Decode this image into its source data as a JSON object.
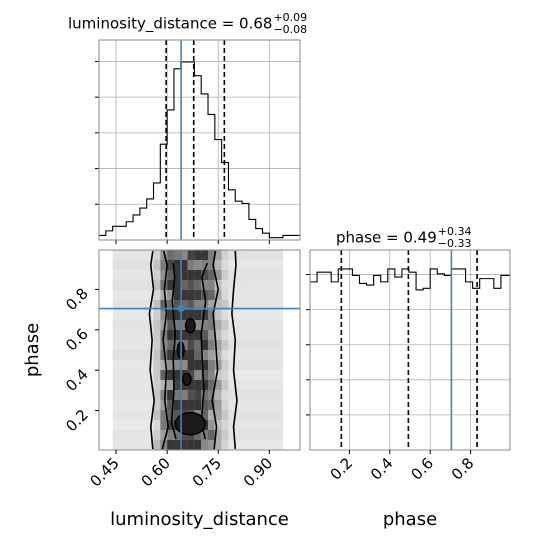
{
  "chart_data": {
    "type": "corner",
    "parameters": [
      "luminosity_distance",
      "phase"
    ],
    "axis_labels": {
      "x": [
        "luminosity_distance",
        "phase"
      ],
      "y": [
        "phase"
      ]
    },
    "ranges": {
      "luminosity_distance": [
        0.4,
        0.99
      ],
      "phase": [
        0.005,
        0.995
      ]
    },
    "truths": {
      "luminosity_distance": 0.641,
      "phase": 0.705
    },
    "titles": [
      {
        "param": "luminosity_distance",
        "text": "luminosity_distance = 0.68",
        "plus": "+0.09",
        "minus": "−0.08"
      },
      {
        "param": "phase",
        "text": "phase = 0.49",
        "plus": "+0.34",
        "minus": "−0.33"
      }
    ],
    "quantiles": {
      "luminosity_distance": [
        0.597,
        0.678,
        0.768
      ],
      "phase": [
        0.16,
        0.492,
        0.832
      ]
    },
    "ticks": {
      "luminosity_distance": [
        "0.45",
        "0.60",
        "0.75",
        "0.90"
      ],
      "luminosity_distance_values": [
        0.45,
        0.6,
        0.75,
        0.9
      ],
      "phase_x": [
        "0.2",
        "0.4",
        "0.6",
        "0.8"
      ],
      "phase_y": [
        "0.2",
        "0.4",
        "0.6",
        "0.8"
      ],
      "phase_values": [
        0.2,
        0.4,
        0.6,
        0.8
      ]
    },
    "hist_luminosity_distance": {
      "edges": [
        0.4,
        0.42,
        0.44,
        0.46,
        0.48,
        0.5,
        0.52,
        0.54,
        0.56,
        0.58,
        0.6,
        0.62,
        0.64,
        0.66,
        0.68,
        0.7,
        0.72,
        0.74,
        0.76,
        0.78,
        0.8,
        0.82,
        0.84,
        0.86,
        0.88,
        0.9,
        0.92,
        0.94,
        0.96,
        0.99
      ],
      "counts": [
        2,
        4,
        6,
        6,
        8,
        11,
        14,
        18,
        25,
        42,
        57,
        75,
        78,
        78,
        72,
        64,
        55,
        44,
        34,
        22,
        17,
        16,
        9,
        5,
        3,
        1,
        1,
        2,
        2
      ]
    },
    "hist_phase": {
      "edges": [
        0.005,
        0.04,
        0.075,
        0.11,
        0.145,
        0.18,
        0.215,
        0.25,
        0.285,
        0.32,
        0.355,
        0.39,
        0.425,
        0.46,
        0.495,
        0.53,
        0.565,
        0.6,
        0.635,
        0.67,
        0.705,
        0.74,
        0.775,
        0.81,
        0.845,
        0.88,
        0.915,
        0.95,
        0.995
      ],
      "counts": [
        1.04,
        1.1,
        1.1,
        1.04,
        1.12,
        1.12,
        1.08,
        1.03,
        1.02,
        1.08,
        1.04,
        1.12,
        1.07,
        1.12,
        1.1,
        0.99,
        1.0,
        1.12,
        1.09,
        1.08,
        1.12,
        1.12,
        1.04,
        1.0,
        1.06,
        1.06,
        1.0,
        1.08
      ]
    },
    "hist2d_colx_edges": [
      0.44,
      0.56,
      0.58,
      0.6,
      0.62,
      0.64,
      0.66,
      0.68,
      0.7,
      0.72,
      0.74,
      0.76,
      0.78,
      0.94
    ],
    "hist2d_colx_weight": [
      0.05,
      0.2,
      0.55,
      0.8,
      1.0,
      0.95,
      1.0,
      0.95,
      0.8,
      0.6,
      0.35,
      0.15,
      0.05
    ],
    "contours": [
      {
        "x": [
          0.626,
          0.613,
          0.62,
          0.618,
          0.624,
          0.615,
          0.622,
          0.618
        ],
        "y": [
          0.06,
          0.14,
          0.3,
          0.45,
          0.58,
          0.74,
          0.86,
          0.93
        ]
      },
      {
        "x": [
          0.712,
          0.7,
          0.708,
          0.703,
          0.7,
          0.713,
          0.702,
          0.718
        ],
        "y": [
          0.06,
          0.14,
          0.3,
          0.45,
          0.58,
          0.74,
          0.86,
          0.93
        ]
      },
      {
        "x": [
          0.586,
          0.603,
          0.593,
          0.598,
          0.588,
          0.598,
          0.592,
          0.6,
          0.59
        ],
        "y": [
          0.01,
          0.12,
          0.25,
          0.4,
          0.55,
          0.68,
          0.8,
          0.92,
          0.99
        ]
      },
      {
        "x": [
          0.738,
          0.745,
          0.732,
          0.748,
          0.742,
          0.735,
          0.75,
          0.735,
          0.742
        ],
        "y": [
          0.01,
          0.12,
          0.25,
          0.4,
          0.55,
          0.68,
          0.8,
          0.92,
          0.99
        ]
      },
      {
        "x": [
          0.558,
          0.552,
          0.562,
          0.55,
          0.556,
          0.548,
          0.56,
          0.552,
          0.558
        ],
        "y": [
          0.01,
          0.12,
          0.25,
          0.4,
          0.55,
          0.68,
          0.8,
          0.92,
          0.99
        ]
      },
      {
        "x": [
          0.8,
          0.795,
          0.805,
          0.795,
          0.8,
          0.79,
          0.795,
          0.802,
          0.8
        ],
        "y": [
          0.01,
          0.12,
          0.25,
          0.4,
          0.55,
          0.68,
          0.8,
          0.92,
          0.99
        ]
      }
    ],
    "blobs": [
      {
        "x": 0.668,
        "y": 0.135,
        "rx": 0.044,
        "ry": 0.055
      },
      {
        "x": 0.658,
        "y": 0.355,
        "rx": 0.012,
        "ry": 0.03
      },
      {
        "x": 0.64,
        "y": 0.5,
        "rx": 0.01,
        "ry": 0.04
      },
      {
        "x": 0.668,
        "y": 0.62,
        "rx": 0.014,
        "ry": 0.035
      }
    ],
    "grid": true
  }
}
